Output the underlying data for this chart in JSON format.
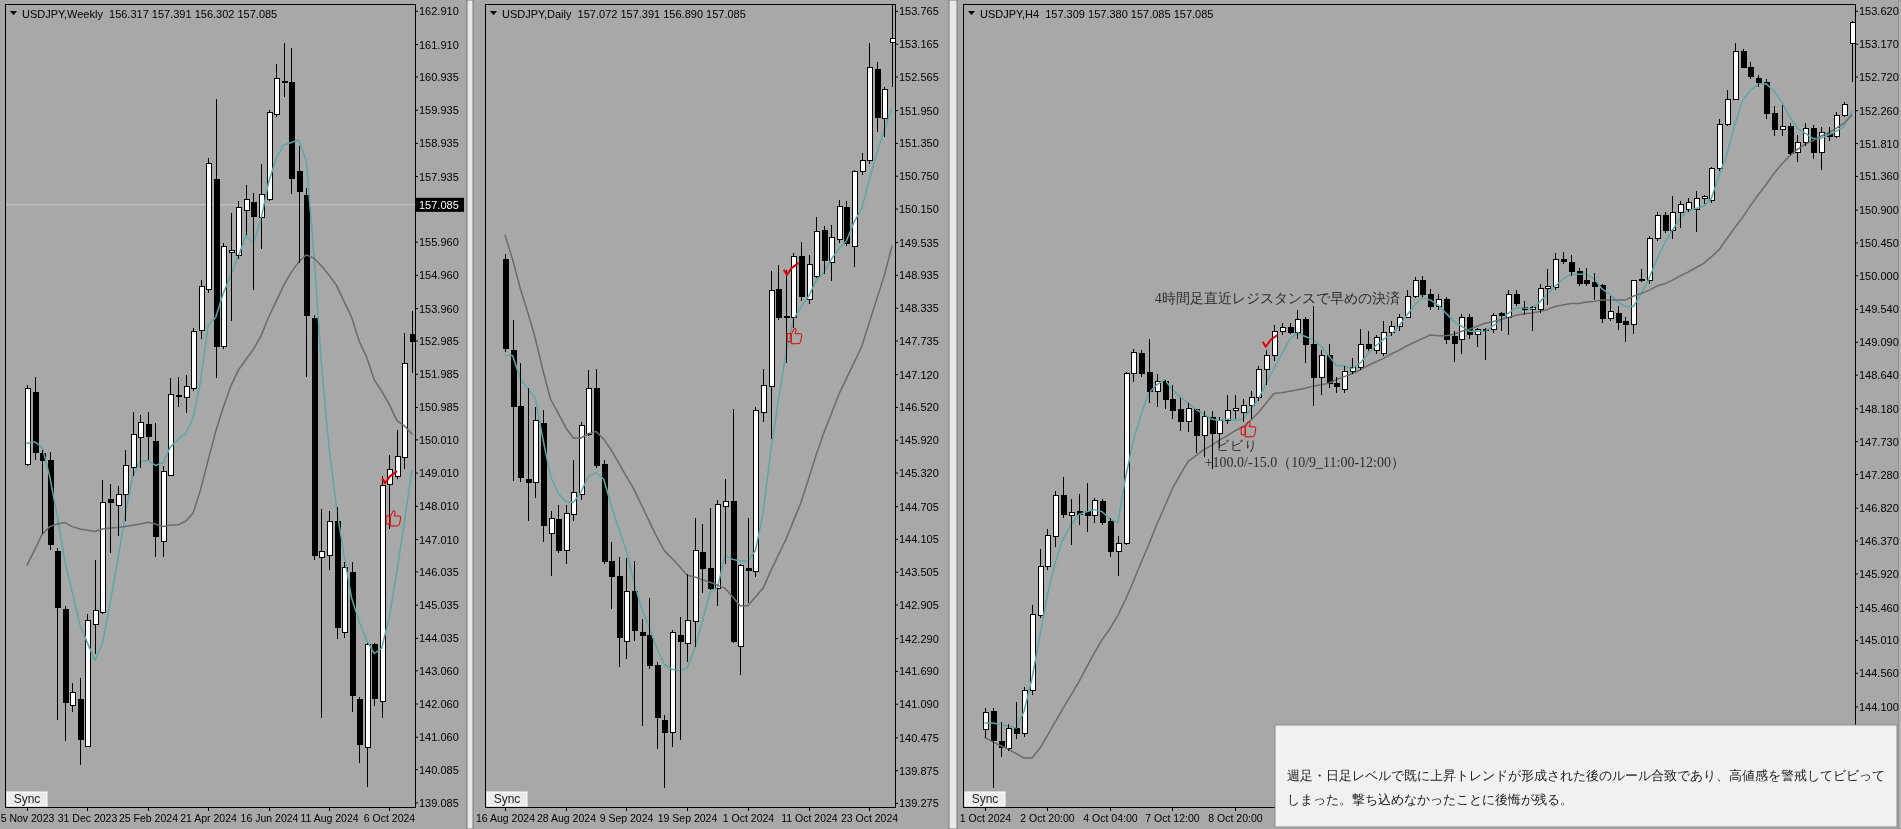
{
  "chart_data": [
    {
      "type": "candlestick",
      "title": "USDJPY,Weekly  156.317 157.391 156.302 157.085",
      "categories": [
        "5 Nov 2023",
        null,
        null,
        null,
        null,
        null,
        null,
        null,
        "31 Dec 2023",
        null,
        null,
        null,
        null,
        null,
        null,
        null,
        "25 Feb 2024",
        null,
        null,
        null,
        null,
        null,
        null,
        null,
        "21 Apr 2024",
        null,
        null,
        null,
        null,
        null,
        null,
        null,
        "16 Jun 2024",
        null,
        null,
        null,
        null,
        null,
        null,
        null,
        "11 Aug 2024",
        null,
        null,
        null,
        null,
        null,
        null,
        null,
        "6 Oct 2024",
        null,
        null,
        null
      ],
      "ohlc": [
        [
          149.27,
          151.66,
          149.21,
          151.55
        ],
        [
          151.44,
          151.91,
          149.4,
          149.64
        ],
        [
          149.59,
          149.72,
          147.17,
          149.4
        ],
        [
          149.4,
          149.64,
          146.69,
          146.85
        ],
        [
          146.66,
          146.77,
          141.59,
          144.97
        ],
        [
          144.89,
          145.01,
          140.95,
          142.1
        ],
        [
          142.02,
          142.7,
          141.83,
          142.42
        ],
        [
          142.19,
          142.83,
          140.23,
          141.0
        ],
        [
          140.79,
          144.78,
          140.76,
          144.58
        ],
        [
          144.46,
          146.4,
          143.58,
          144.86
        ],
        [
          144.81,
          148.79,
          144.78,
          148.12
        ],
        [
          148.22,
          148.68,
          146.61,
          148.12
        ],
        [
          148.04,
          148.63,
          147.13,
          148.36
        ],
        [
          148.36,
          149.72,
          147.56,
          149.24
        ],
        [
          149.19,
          150.86,
          148.92,
          150.16
        ],
        [
          150.07,
          150.75,
          149.16,
          150.54
        ],
        [
          150.46,
          150.86,
          149.4,
          150.11
        ],
        [
          149.95,
          150.51,
          146.48,
          147.09
        ],
        [
          146.96,
          149.21,
          146.48,
          149.05
        ],
        [
          148.95,
          151.87,
          148.92,
          151.39
        ],
        [
          151.31,
          151.91,
          150.99,
          151.34
        ],
        [
          151.28,
          151.95,
          150.83,
          151.63
        ],
        [
          151.55,
          153.38,
          151.47,
          153.27
        ],
        [
          153.3,
          154.82,
          153.06,
          154.62
        ],
        [
          154.53,
          158.48,
          154.42,
          158.32
        ],
        [
          157.84,
          160.27,
          151.87,
          152.82
        ],
        [
          152.82,
          155.93,
          152.74,
          155.82
        ],
        [
          155.64,
          156.85,
          153.59,
          155.72
        ],
        [
          155.56,
          157.21,
          155.45,
          157.0
        ],
        [
          156.92,
          157.68,
          156.17,
          157.25
        ],
        [
          157.16,
          157.44,
          154.53,
          156.73
        ],
        [
          156.7,
          158.32,
          155.77,
          157.4
        ],
        [
          157.24,
          159.95,
          157.21,
          159.87
        ],
        [
          159.79,
          161.32,
          159.72,
          160.9
        ],
        [
          160.78,
          161.95,
          160.33,
          160.81
        ],
        [
          160.76,
          161.8,
          157.4,
          157.87
        ],
        [
          158.1,
          158.86,
          155.33,
          157.5
        ],
        [
          157.36,
          157.6,
          151.91,
          153.75
        ],
        [
          153.65,
          153.78,
          146.4,
          146.53
        ],
        [
          146.48,
          147.93,
          141.64,
          146.64
        ],
        [
          146.53,
          147.88,
          146.08,
          147.56
        ],
        [
          147.56,
          147.99,
          144.03,
          144.35
        ],
        [
          144.22,
          146.34,
          144.06,
          146.18
        ],
        [
          146.02,
          146.34,
          141.83,
          142.31
        ],
        [
          142.19,
          142.26,
          140.28,
          140.84
        ],
        [
          140.76,
          143.9,
          139.55,
          143.85
        ],
        [
          143.85,
          143.9,
          141.99,
          142.23
        ],
        [
          142.15,
          148.92,
          141.64,
          148.63
        ],
        [
          148.68,
          149.56,
          147.33,
          149.11
        ],
        [
          148.92,
          150.32,
          148.84,
          149.52
        ],
        [
          149.48,
          153.22,
          149.13,
          152.31
        ],
        [
          153.19,
          153.89,
          152.03,
          152.98
        ]
      ],
      "series": [
        {
          "type": "line",
          "color": "#5ea7a7",
          "values": [
            149.91,
            149.95,
            149.8,
            148.92,
            147.72,
            146.37,
            145.41,
            144.46,
            143.9,
            143.37,
            143.9,
            145.09,
            146.37,
            147.72,
            148.92,
            149.35,
            149.4,
            149.24,
            149.32,
            149.8,
            150.03,
            150.19,
            150.67,
            151.79,
            153.46,
            153.7,
            154.42,
            154.97,
            155.53,
            156.17,
            155.93,
            156.65,
            157.76,
            158.48,
            158.88,
            158.96,
            159.04,
            158.4,
            155.61,
            152.27,
            149.8,
            147.96,
            146.53,
            145.25,
            144.54,
            143.98,
            143.58,
            143.74,
            144.7,
            146.05,
            147.56,
            149.11
          ]
        },
        {
          "type": "line",
          "color": "#6b6b6b",
          "values": [
            146.24,
            146.69,
            147.17,
            147.4,
            147.48,
            147.52,
            147.4,
            147.33,
            147.29,
            147.25,
            147.33,
            147.36,
            147.37,
            147.4,
            147.44,
            147.48,
            147.53,
            147.48,
            147.4,
            147.45,
            147.45,
            147.56,
            147.8,
            148.52,
            149.4,
            150.27,
            150.99,
            151.63,
            152.11,
            152.43,
            152.74,
            153.14,
            153.7,
            154.18,
            154.66,
            155.05,
            155.37,
            155.58,
            155.48,
            155.25,
            154.97,
            154.66,
            154.18,
            153.7,
            152.98,
            152.5,
            151.82,
            151.47,
            151.07,
            150.59,
            150.43,
            150.19
          ]
        }
      ],
      "ylim": [
        138.96,
        163.13
      ],
      "yticks": [
        {
          "value": 162.91,
          "label": "162.910"
        },
        {
          "value": 161.91,
          "label": "161.910"
        },
        160.935,
        159.935,
        158.935,
        157.935,
        {
          "value": 155.96,
          "label": "155.960"
        },
        {
          "value": 154.96,
          "label": "154.960"
        },
        {
          "value": 153.96,
          "label": "153.960"
        },
        152.985,
        151.985,
        150.985,
        {
          "value": 150.01,
          "label": "150.010"
        },
        {
          "value": 149.01,
          "label": "149.010"
        },
        {
          "value": 148.01,
          "label": "148.010"
        },
        {
          "value": 147.01,
          "label": "147.010"
        },
        146.035,
        145.035,
        144.035,
        {
          "value": 143.06,
          "label": "143.060"
        },
        {
          "value": 142.06,
          "label": "142.060"
        },
        {
          "value": 141.06,
          "label": "141.060"
        },
        140.085,
        139.085
      ],
      "ref_lines": [
        {
          "axis": "y",
          "value": 157.085,
          "label": "157.085",
          "color": "#c8c8c8"
        }
      ],
      "annotations": [
        "Sync"
      ]
    },
    {
      "type": "candlestick",
      "title": "USDJPY,Daily  157.072 157.391 156.890 157.085",
      "categories": [
        "16 Aug 2024",
        null,
        null,
        null,
        null,
        null,
        null,
        null,
        "28 Aug 2024",
        null,
        null,
        null,
        null,
        null,
        null,
        null,
        "9 Sep 2024",
        null,
        null,
        null,
        null,
        null,
        null,
        null,
        "19 Sep 2024",
        null,
        null,
        null,
        null,
        null,
        null,
        null,
        "1 Oct 2024",
        null,
        null,
        null,
        null,
        null,
        null,
        null,
        "11 Oct 2024",
        null,
        null,
        null,
        null,
        null,
        null,
        null,
        "23 Oct 2024",
        null,
        null,
        null
      ],
      "ohlc": [
        [
          149.23,
          149.33,
          147.54,
          147.59
        ],
        [
          147.56,
          148.12,
          145.18,
          146.54
        ],
        [
          146.54,
          147.34,
          145.16,
          145.24
        ],
        [
          145.21,
          146.88,
          144.44,
          145.14
        ],
        [
          145.14,
          146.52,
          144.87,
          146.28
        ],
        [
          146.23,
          146.47,
          144.05,
          144.36
        ],
        [
          144.22,
          144.63,
          143.44,
          144.49
        ],
        [
          144.47,
          144.73,
          143.86,
          143.9
        ],
        [
          143.9,
          144.73,
          143.66,
          144.58
        ],
        [
          144.56,
          145.55,
          144.44,
          144.97
        ],
        [
          144.92,
          146.25,
          144.82,
          146.18
        ],
        [
          146.02,
          147.2,
          145.99,
          146.86
        ],
        [
          146.86,
          147.22,
          145.41,
          145.45
        ],
        [
          145.47,
          145.55,
          143.66,
          143.71
        ],
        [
          143.71,
          144.05,
          142.84,
          143.42
        ],
        [
          143.42,
          143.79,
          141.77,
          142.31
        ],
        [
          142.24,
          143.76,
          141.92,
          143.16
        ],
        [
          143.16,
          143.71,
          142.24,
          142.43
        ],
        [
          142.4,
          142.65,
          140.69,
          142.35
        ],
        [
          142.35,
          143.03,
          141.73,
          141.79
        ],
        [
          141.79,
          141.87,
          140.27,
          140.85
        ],
        [
          140.8,
          140.9,
          139.56,
          140.58
        ],
        [
          140.58,
          142.45,
          140.3,
          142.4
        ],
        [
          142.34,
          142.69,
          140.44,
          142.24
        ],
        [
          142.21,
          143.47,
          141.87,
          142.62
        ],
        [
          142.6,
          144.49,
          142.14,
          143.9
        ],
        [
          143.86,
          144.39,
          143.13,
          143.57
        ],
        [
          143.57,
          144.68,
          143.18,
          143.21
        ],
        [
          143.21,
          144.82,
          142.89,
          144.75
        ],
        [
          144.71,
          145.21,
          143.66,
          144.8
        ],
        [
          144.8,
          146.5,
          142.21,
          142.24
        ],
        [
          142.14,
          143.66,
          141.63,
          143.63
        ],
        [
          143.58,
          144.5,
          142.94,
          143.54
        ],
        [
          143.52,
          146.52,
          143.42,
          146.47
        ],
        [
          146.42,
          147.22,
          146.25,
          146.93
        ],
        [
          146.91,
          149.02,
          145.94,
          148.65
        ],
        [
          148.68,
          149.13,
          148.12,
          148.17
        ],
        [
          148.19,
          149.04,
          147.34,
          148.17
        ],
        [
          148.17,
          149.35,
          147.97,
          149.28
        ],
        [
          149.28,
          149.54,
          148.46,
          148.55
        ],
        [
          148.49,
          149.31,
          148.41,
          149.13
        ],
        [
          148.91,
          150.01,
          148.89,
          149.74
        ],
        [
          149.75,
          149.83,
          148.96,
          149.2
        ],
        [
          149.18,
          149.86,
          148.84,
          149.62
        ],
        [
          149.6,
          150.32,
          149.52,
          150.2
        ],
        [
          150.18,
          150.3,
          149.47,
          149.52
        ],
        [
          149.47,
          150.86,
          149.09,
          150.83
        ],
        [
          150.83,
          151.17,
          150.78,
          151.04
        ],
        [
          151.04,
          153.18,
          150.98,
          152.74
        ],
        [
          152.7,
          152.83,
          151.56,
          151.83
        ],
        [
          151.8,
          152.38,
          151.46,
          152.33
        ],
        [
          153.2,
          153.88,
          152.38,
          153.27
        ]
      ],
      "series": [
        {
          "type": "line",
          "color": "#5ea7a7",
          "values": [
            147.47,
            147.47,
            147.05,
            146.86,
            146.69,
            145.94,
            145.26,
            144.95,
            144.8,
            144.78,
            144.97,
            145.26,
            145.33,
            145.21,
            144.73,
            144.29,
            143.9,
            143.32,
            142.84,
            142.5,
            142.11,
            141.82,
            141.73,
            141.7,
            141.75,
            142.11,
            142.6,
            143.13,
            143.23,
            143.81,
            143.74,
            143.71,
            143.71,
            143.9,
            144.58,
            145.7,
            146.62,
            147.49,
            148.12,
            148.36,
            148.55,
            148.84,
            148.99,
            149.23,
            149.43,
            149.57,
            149.91,
            150.15,
            150.68,
            151.17,
            151.6,
            151.99
          ]
        },
        {
          "type": "line",
          "color": "#6b6b6b",
          "values": [
            149.67,
            149.23,
            148.7,
            148.26,
            147.78,
            147.2,
            146.67,
            146.42,
            146.15,
            145.96,
            145.96,
            146.04,
            146.08,
            145.94,
            145.74,
            145.5,
            145.26,
            145.02,
            144.73,
            144.44,
            144.15,
            143.9,
            143.76,
            143.61,
            143.45,
            143.42,
            143.37,
            143.32,
            143.27,
            143.21,
            143.05,
            142.89,
            142.89,
            143.05,
            143.21,
            143.52,
            143.81,
            144.1,
            144.44,
            144.78,
            145.21,
            145.65,
            146.05,
            146.4,
            146.76,
            147.05,
            147.34,
            147.63,
            148.07,
            148.51,
            148.94,
            149.47
          ]
        }
      ],
      "ylim": [
        139.21,
        153.9
      ],
      "yticks": [
        153.765,
        153.165,
        152.565,
        {
          "value": 151.95,
          "label": "151.950"
        },
        {
          "value": 151.35,
          "label": "151.350"
        },
        {
          "value": 150.75,
          "label": "150.750"
        },
        {
          "value": 150.15,
          "label": "150.150"
        },
        149.535,
        148.935,
        148.335,
        147.735,
        {
          "value": 147.12,
          "label": "147.120"
        },
        {
          "value": 146.52,
          "label": "146.520"
        },
        {
          "value": 145.92,
          "label": "145.920"
        },
        {
          "value": 145.32,
          "label": "145.320"
        },
        144.705,
        144.105,
        143.505,
        142.905,
        {
          "value": 142.29,
          "label": "142.290"
        },
        {
          "value": 141.69,
          "label": "141.690"
        },
        {
          "value": 141.09,
          "label": "141.090"
        },
        140.475,
        139.875,
        139.275
      ],
      "annotations": [
        "Sync"
      ]
    },
    {
      "type": "candlestick",
      "title": "USDJPY,H4  157.309 157.380 157.085 157.085",
      "categories": [
        "1 Oct 2024",
        null,
        null,
        null,
        null,
        null,
        null,
        null,
        "2 Oct 20:00",
        null,
        null,
        null,
        null,
        null,
        null,
        null,
        "4 Oct 04:00",
        null,
        null,
        null,
        null,
        null,
        null,
        null,
        "7 Oct 12:00",
        null,
        null,
        null,
        null,
        null,
        null,
        null,
        "8 Oct 20:00",
        null,
        null,
        null,
        null,
        null,
        null,
        null,
        null,
        null,
        null,
        null,
        null,
        null,
        null,
        null,
        null,
        null,
        null,
        null,
        null,
        null,
        null,
        null,
        null,
        null,
        null,
        null,
        null,
        null,
        null,
        null,
        null,
        null,
        null,
        null,
        null,
        null,
        null,
        null,
        null,
        null,
        null,
        null,
        null,
        null,
        null,
        null,
        null,
        null,
        null,
        null,
        null,
        null,
        null,
        null,
        null,
        null,
        null,
        null,
        null,
        null,
        null,
        null,
        null,
        null,
        null,
        null,
        null,
        null,
        null,
        null,
        null,
        null,
        null,
        null,
        null,
        null,
        null,
        null
      ],
      "ohlc": [
        [
          143.79,
          144.08,
          143.68,
          144.02
        ],
        [
          144.04,
          144.08,
          142.99,
          143.64
        ],
        [
          143.63,
          143.9,
          143.42,
          143.55
        ],
        [
          143.53,
          143.86,
          143.5,
          143.81
        ],
        [
          143.81,
          144.17,
          143.66,
          143.73
        ],
        [
          143.73,
          144.37,
          143.69,
          144.32
        ],
        [
          144.32,
          145.5,
          144.26,
          145.36
        ],
        [
          145.35,
          146.26,
          145.31,
          146.02
        ],
        [
          146.02,
          146.53,
          145.97,
          146.45
        ],
        [
          146.43,
          147.06,
          146.29,
          146.99
        ],
        [
          146.99,
          147.24,
          146.69,
          146.73
        ],
        [
          146.72,
          146.95,
          146.31,
          146.76
        ],
        [
          146.77,
          147.02,
          146.59,
          146.73
        ],
        [
          146.78,
          147.17,
          146.49,
          146.72
        ],
        [
          146.72,
          146.96,
          146.62,
          146.93
        ],
        [
          146.91,
          146.95,
          146.59,
          146.62
        ],
        [
          146.64,
          146.69,
          146.15,
          146.22
        ],
        [
          146.22,
          146.44,
          145.89,
          146.33
        ],
        [
          146.33,
          148.69,
          146.31,
          148.66
        ],
        [
          148.66,
          149.0,
          148.55,
          148.95
        ],
        [
          148.93,
          148.98,
          148.62,
          148.66
        ],
        [
          148.67,
          149.13,
          148.26,
          148.42
        ],
        [
          148.42,
          148.66,
          148.2,
          148.55
        ],
        [
          148.55,
          148.58,
          148.18,
          148.31
        ],
        [
          148.31,
          148.51,
          148.04,
          148.16
        ],
        [
          148.17,
          148.33,
          147.88,
          148.0
        ],
        [
          148.0,
          148.26,
          147.86,
          148.18
        ],
        [
          148.17,
          148.18,
          147.57,
          147.82
        ],
        [
          147.82,
          148.15,
          147.52,
          148.07
        ],
        [
          148.06,
          148.15,
          147.35,
          147.84
        ],
        [
          147.84,
          148.07,
          147.64,
          148.02
        ],
        [
          148.02,
          148.37,
          147.97,
          148.15
        ],
        [
          148.15,
          148.37,
          148.04,
          148.18
        ],
        [
          148.13,
          148.31,
          148.0,
          148.22
        ],
        [
          148.22,
          148.42,
          148.04,
          148.34
        ],
        [
          148.33,
          148.77,
          148.29,
          148.72
        ],
        [
          148.72,
          148.98,
          148.51,
          148.91
        ],
        [
          148.91,
          149.33,
          148.84,
          149.24
        ],
        [
          149.24,
          149.36,
          149.19,
          149.29
        ],
        [
          149.29,
          149.36,
          149.2,
          149.22
        ],
        [
          149.22,
          149.53,
          149.13,
          149.4
        ],
        [
          149.4,
          149.43,
          148.8,
          149.06
        ],
        [
          149.06,
          149.58,
          148.22,
          148.61
        ],
        [
          148.61,
          148.98,
          148.37,
          148.91
        ],
        [
          148.91,
          149.06,
          148.47,
          148.53
        ],
        [
          148.53,
          148.61,
          148.4,
          148.49
        ],
        [
          148.44,
          148.77,
          148.39,
          148.69
        ],
        [
          148.69,
          148.87,
          148.66,
          148.74
        ],
        [
          148.74,
          149.27,
          148.71,
          149.06
        ],
        [
          149.06,
          149.24,
          148.97,
          149.0
        ],
        [
          148.98,
          149.19,
          148.93,
          149.15
        ],
        [
          148.93,
          149.38,
          148.9,
          149.22
        ],
        [
          149.22,
          149.38,
          149.17,
          149.31
        ],
        [
          149.31,
          149.48,
          149.24,
          149.43
        ],
        [
          149.43,
          149.8,
          149.42,
          149.72
        ],
        [
          149.72,
          149.99,
          149.7,
          149.93
        ],
        [
          149.94,
          150.0,
          149.71,
          149.75
        ],
        [
          149.75,
          149.82,
          149.53,
          149.58
        ],
        [
          149.58,
          149.75,
          149.53,
          149.67
        ],
        [
          149.67,
          149.71,
          149.07,
          149.13
        ],
        [
          149.17,
          149.24,
          148.82,
          149.07
        ],
        [
          149.13,
          149.48,
          148.93,
          149.43
        ],
        [
          149.43,
          149.48,
          149.14,
          149.19
        ],
        [
          149.2,
          149.29,
          149.02,
          149.27
        ],
        [
          149.26,
          149.29,
          148.85,
          149.27
        ],
        [
          149.27,
          149.49,
          149.22,
          149.46
        ],
        [
          149.48,
          149.51,
          149.24,
          149.46
        ],
        [
          149.43,
          149.8,
          149.19,
          149.75
        ],
        [
          149.75,
          149.8,
          149.58,
          149.62
        ],
        [
          149.56,
          149.65,
          149.46,
          149.54
        ],
        [
          149.54,
          149.58,
          149.24,
          149.56
        ],
        [
          149.54,
          149.89,
          149.49,
          149.83
        ],
        [
          149.83,
          150.09,
          149.6,
          149.86
        ],
        [
          149.84,
          150.31,
          149.8,
          150.22
        ],
        [
          150.22,
          150.33,
          150.16,
          150.2
        ],
        [
          150.18,
          150.29,
          150.0,
          150.06
        ],
        [
          150.06,
          150.11,
          149.86,
          149.89
        ],
        [
          149.93,
          150.11,
          149.86,
          149.89
        ],
        [
          149.91,
          150.04,
          149.67,
          149.86
        ],
        [
          149.87,
          149.89,
          149.35,
          149.42
        ],
        [
          149.42,
          149.72,
          149.38,
          149.51
        ],
        [
          149.48,
          149.58,
          149.26,
          149.36
        ],
        [
          149.38,
          149.43,
          149.09,
          149.33
        ],
        [
          149.33,
          149.94,
          149.2,
          149.93
        ],
        [
          149.93,
          150.09,
          149.91,
          149.95
        ],
        [
          149.93,
          150.55,
          149.89,
          150.51
        ],
        [
          150.51,
          150.87,
          150.47,
          150.82
        ],
        [
          150.82,
          150.87,
          150.58,
          150.62
        ],
        [
          150.62,
          151.09,
          150.5,
          150.87
        ],
        [
          150.87,
          151.03,
          150.66,
          150.98
        ],
        [
          150.91,
          151.06,
          150.87,
          151.0
        ],
        [
          150.91,
          151.16,
          150.6,
          151.06
        ],
        [
          151.06,
          151.11,
          150.98,
          151.08
        ],
        [
          151.03,
          151.49,
          151.0,
          151.47
        ],
        [
          151.47,
          152.15,
          151.44,
          152.07
        ],
        [
          152.07,
          152.54,
          152.05,
          152.41
        ],
        [
          152.41,
          153.18,
          152.4,
          153.07
        ],
        [
          153.07,
          153.11,
          152.84,
          152.85
        ],
        [
          152.85,
          152.92,
          152.69,
          152.73
        ],
        [
          152.7,
          152.75,
          152.58,
          152.65
        ],
        [
          152.65,
          152.69,
          152.15,
          152.22
        ],
        [
          152.22,
          152.33,
          151.91,
          152.0
        ],
        [
          152.0,
          152.34,
          151.91,
          152.05
        ],
        [
          152.05,
          152.09,
          151.66,
          151.67
        ],
        [
          151.69,
          151.93,
          151.56,
          151.83
        ],
        [
          151.83,
          152.09,
          151.78,
          152.01
        ],
        [
          152.01,
          152.07,
          151.6,
          151.69
        ],
        [
          151.69,
          152.04,
          151.45,
          151.96
        ],
        [
          151.95,
          152.04,
          151.85,
          151.91
        ],
        [
          151.91,
          152.24,
          151.88,
          152.2
        ],
        [
          152.2,
          152.38,
          152.17,
          152.34
        ],
        [
          153.18,
          153.49,
          152.65,
          153.47
        ]
      ],
      "series": [
        {
          "type": "line",
          "color": "#5ea7a7",
          "values": [
            143.88,
            143.88,
            143.86,
            143.84,
            143.81,
            144.04,
            144.48,
            145.06,
            145.64,
            146.08,
            146.4,
            146.59,
            146.73,
            146.77,
            146.8,
            146.77,
            146.67,
            146.62,
            147.24,
            147.75,
            148.11,
            148.4,
            148.51,
            148.58,
            148.44,
            148.34,
            148.26,
            148.17,
            148.11,
            148.04,
            148.02,
            148.04,
            148.02,
            148.04,
            148.17,
            148.31,
            148.53,
            148.73,
            148.93,
            149.13,
            149.22,
            149.17,
            149.13,
            149.04,
            148.91,
            148.77,
            148.77,
            148.73,
            148.8,
            148.93,
            149.04,
            149.13,
            149.2,
            149.31,
            149.46,
            149.6,
            149.7,
            149.67,
            149.6,
            149.49,
            149.38,
            149.31,
            149.24,
            149.24,
            149.24,
            149.31,
            149.38,
            149.49,
            149.56,
            149.56,
            149.55,
            149.64,
            149.75,
            149.86,
            149.96,
            150.02,
            150.02,
            150.02,
            149.96,
            149.82,
            149.75,
            149.64,
            149.58,
            149.58,
            149.75,
            149.96,
            150.22,
            150.45,
            150.62,
            150.79,
            150.89,
            150.92,
            150.95,
            151.06,
            151.38,
            151.67,
            152.07,
            152.4,
            152.54,
            152.62,
            152.63,
            152.53,
            152.38,
            152.18,
            152.02,
            151.95,
            151.88,
            151.88,
            151.93,
            151.98,
            152.05,
            152.25
          ]
        },
        {
          "type": "line",
          "color": "#6b6b6b",
          "values": [
            143.68,
            143.62,
            143.57,
            143.52,
            143.46,
            143.4,
            143.4,
            143.53,
            143.71,
            143.9,
            144.08,
            144.26,
            144.44,
            144.64,
            144.84,
            145.02,
            145.17,
            145.35,
            145.57,
            145.82,
            146.08,
            146.33,
            146.6,
            146.84,
            147.09,
            147.28,
            147.46,
            147.54,
            147.62,
            147.68,
            147.75,
            147.81,
            147.88,
            147.93,
            148.02,
            148.13,
            148.26,
            148.39,
            148.4,
            148.42,
            148.44,
            148.46,
            148.49,
            148.51,
            148.53,
            148.58,
            148.62,
            148.66,
            148.71,
            148.77,
            148.82,
            148.87,
            148.93,
            148.98,
            149.04,
            149.09,
            149.14,
            149.19,
            149.18,
            149.18,
            149.2,
            149.24,
            149.27,
            149.31,
            149.35,
            149.37,
            149.4,
            149.43,
            149.46,
            149.48,
            149.49,
            149.51,
            149.54,
            149.58,
            149.6,
            149.62,
            149.62,
            149.64,
            149.65,
            149.67,
            149.67,
            149.67,
            149.67,
            149.72,
            149.76,
            149.8,
            149.86,
            149.89,
            149.94,
            150.0,
            150.05,
            150.11,
            150.17,
            150.26,
            150.36,
            150.51,
            150.66,
            150.8,
            150.96,
            151.11,
            151.25,
            151.4,
            151.53,
            151.64,
            151.73,
            151.8,
            151.85,
            151.91,
            151.96,
            152.02,
            152.09,
            152.2
          ]
        }
      ],
      "ylim": [
        142.73,
        153.72
      ],
      "yticks": [
        {
          "value": 153.62,
          "label": "153.620"
        },
        {
          "value": 153.17,
          "label": "153.170"
        },
        {
          "value": 152.72,
          "label": "152.720"
        },
        {
          "value": 152.26,
          "label": "152.260"
        },
        {
          "value": 151.81,
          "label": "151.810"
        },
        {
          "value": 151.36,
          "label": "151.360"
        },
        {
          "value": 150.9,
          "label": "150.900"
        },
        {
          "value": 150.45,
          "label": "150.450"
        },
        {
          "value": 150,
          "label": "150.000"
        },
        {
          "value": 149.54,
          "label": "149.540"
        },
        {
          "value": 149.09,
          "label": "149.090"
        },
        {
          "value": 148.64,
          "label": "148.640"
        },
        {
          "value": 148.18,
          "label": "148.180"
        },
        {
          "value": 147.73,
          "label": "147.730"
        },
        {
          "value": 147.28,
          "label": "147.280"
        },
        {
          "value": 146.82,
          "label": "146.820"
        },
        {
          "value": 146.37,
          "label": "146.370"
        },
        {
          "value": 145.92,
          "label": "145.920"
        },
        {
          "value": 145.46,
          "label": "145.460"
        },
        {
          "value": 145.01,
          "label": "145.010"
        },
        {
          "value": 144.56,
          "label": "144.560"
        },
        {
          "value": 144.1,
          "label": "144.100"
        }
      ],
      "annotations": [
        "4時間足直近レジスタンスで早めの決済",
        "ビビり",
        "+100.0/-15.0（10/9_11:00-12:00）",
        "週足・日足レベルで既に上昇トレンドが形成された後のルール合致であり、高値感を警戒してビビってしまった。撃ち込めなかったことに後悔が残る。",
        "Sync"
      ]
    }
  ]
}
